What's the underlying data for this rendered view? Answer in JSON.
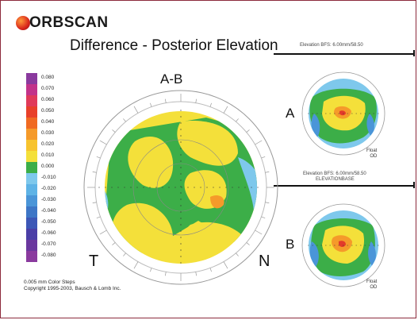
{
  "brand": {
    "name": "ORBSCAN",
    "logo_icon": "red-sphere-icon"
  },
  "report": {
    "title": "Difference - Posterior Elevation"
  },
  "top_caption": "Elevation BFS: 6.00mm/58.50",
  "mid_caption": "Elevation BFS: 6.00mm/58.50",
  "mid_caption_2": "ELEVATIONBASE",
  "colors": {
    "frame": "#8c2a3c",
    "green": "#3cae48",
    "yellow": "#f4e03a",
    "light_blue": "#7ec8ec",
    "orange": "#f59a2a",
    "red": "#e33a2a"
  },
  "scale": {
    "labels": [
      "0.080",
      "0.070",
      "0.060",
      "0.050",
      "0.040",
      "0.030",
      "0.020",
      "0.010",
      "0.000",
      "-0.010",
      "-0.020",
      "-0.030",
      "-0.040",
      "-0.050",
      "-0.060",
      "-0.070",
      "-0.080"
    ],
    "colors": [
      "#8a3a9e",
      "#c2338a",
      "#e03a5a",
      "#e8402a",
      "#f06a22",
      "#f59a2a",
      "#f7c32e",
      "#f4e03a",
      "#3cae48",
      "#7ec8ec",
      "#5eb3e6",
      "#4a95d8",
      "#3d76c6",
      "#3c57b6",
      "#4a3ea6",
      "#6a379e",
      "#8a3a9e"
    ]
  },
  "main_map": {
    "label": "A-B",
    "left_marker": "T",
    "right_marker": "N"
  },
  "map_a": {
    "label": "A",
    "float": "Float",
    "eye": "OD"
  },
  "map_b": {
    "label": "B",
    "float": "Float",
    "eye": "OD"
  },
  "footer": {
    "color_steps": "0.005 mm Color Steps",
    "copyright": "Copyright 1995-2003, Bausch & Lomb Inc."
  }
}
